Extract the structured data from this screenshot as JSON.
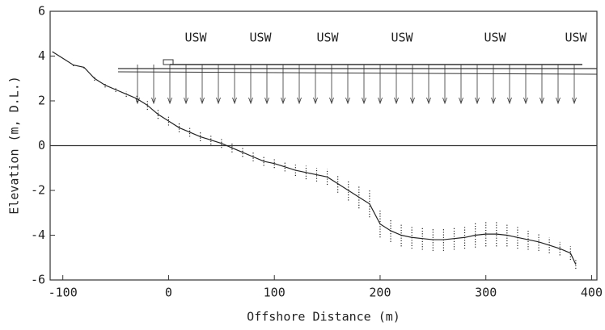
{
  "chart_data": {
    "type": "line",
    "x_label": "Offshore Distance (m)",
    "y_label": "Elevation (m, D.L.)",
    "xlim": [
      -112,
      405
    ],
    "ylim": [
      -6,
      6
    ],
    "xticks": [
      -100,
      0,
      100,
      200,
      300,
      400
    ],
    "yticks": [
      -6,
      -4,
      -2,
      0,
      2,
      4,
      6
    ],
    "x": [
      -110,
      -100,
      -90,
      -80,
      -70,
      -60,
      -50,
      -40,
      -30,
      -20,
      -10,
      0,
      10,
      20,
      30,
      40,
      50,
      60,
      70,
      80,
      90,
      100,
      110,
      120,
      130,
      140,
      150,
      160,
      170,
      180,
      190,
      200,
      210,
      220,
      230,
      240,
      250,
      260,
      270,
      280,
      290,
      300,
      310,
      320,
      330,
      340,
      350,
      360,
      370,
      380,
      385
    ],
    "series": [
      {
        "color": "#222222",
        "values": [
          4.2,
          3.9,
          3.6,
          3.5,
          3.0,
          2.7,
          2.5,
          2.3,
          2.1,
          1.8,
          1.4,
          1.1,
          0.8,
          0.6,
          0.4,
          0.25,
          0.1,
          -0.1,
          -0.3,
          -0.5,
          -0.7,
          -0.8,
          -0.95,
          -1.1,
          -1.2,
          -1.3,
          -1.4,
          -1.7,
          -2.0,
          -2.3,
          -2.6,
          -3.5,
          -3.8,
          -4.0,
          -4.1,
          -4.15,
          -4.2,
          -4.2,
          -4.15,
          -4.1,
          -4.0,
          -3.95,
          -3.95,
          -4.0,
          -4.1,
          -4.2,
          -4.3,
          -4.45,
          -4.6,
          -4.8,
          -5.3
        ],
        "errors": [
          0.0,
          0.0,
          0.05,
          0.05,
          0.1,
          0.1,
          0.1,
          0.12,
          0.15,
          0.2,
          0.2,
          0.2,
          0.2,
          0.2,
          0.2,
          0.2,
          0.2,
          0.2,
          0.2,
          0.2,
          0.2,
          0.2,
          0.2,
          0.25,
          0.3,
          0.3,
          0.35,
          0.4,
          0.45,
          0.5,
          0.6,
          0.6,
          0.5,
          0.5,
          0.5,
          0.5,
          0.5,
          0.5,
          0.5,
          0.5,
          0.55,
          0.55,
          0.55,
          0.5,
          0.5,
          0.45,
          0.4,
          0.35,
          0.3,
          0.3,
          0.2
        ]
      }
    ],
    "annotations": [
      "USW",
      "USW",
      "USW",
      "USW",
      "USW",
      "USW"
    ]
  }
}
